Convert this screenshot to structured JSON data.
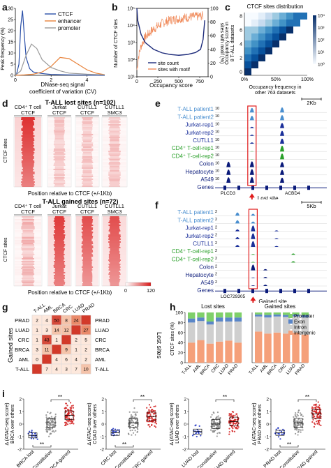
{
  "panels": {
    "a": {
      "letter": "a",
      "ylabel": "Peak frequency (%)",
      "xlabel": "DNase-seq signal coefficient of variation (CV)",
      "xlabel_line1": "DNase-seq signal",
      "xlabel_line2": "coefficient of variation (CV)",
      "yticks": [
        "0",
        "5",
        "10",
        "15",
        "20",
        "25",
        "30"
      ],
      "xticks": [
        "0",
        "2",
        "4"
      ],
      "legend": [
        {
          "name": "CTCF",
          "color": "#2a4fa8"
        },
        {
          "name": "enhancer",
          "color": "#e8823a"
        },
        {
          "name": "promoter",
          "color": "#9a9a9a"
        }
      ]
    },
    "b": {
      "letter": "b",
      "ylabel_left": "Number of CTCF sites",
      "ylabel_right": "sites with motif (%)",
      "xlabel": "Occupancy score",
      "xticks": [
        "0",
        "250",
        "500",
        "750"
      ],
      "yticks_left": [
        "10^1",
        "10^2",
        "10^3",
        "10^4",
        "10^5"
      ],
      "yticks_right": [
        "0",
        "20",
        "40",
        "60",
        "80",
        "100"
      ],
      "legend": [
        {
          "name": "site count",
          "color": "#1c2a7a"
        },
        {
          "name": "sites with motif",
          "color": "#f08a5a"
        }
      ]
    },
    "c": {
      "letter": "c",
      "title": "CTCF sites distribution",
      "ylabel_line1": "Occupancy score in",
      "ylabel_line2": "8 T-ALL datasets",
      "xlabel_line1": "Occupancy frequency in",
      "xlabel_line2": "other 763 datasets",
      "yticks": [
        "0",
        "2",
        "4",
        "6",
        "8"
      ],
      "xticks": [
        "0%",
        "50%",
        "100%"
      ],
      "colorbar_ticks": [
        "10^0",
        "10^1",
        "10^2",
        "10^3",
        "10^4"
      ]
    },
    "d": {
      "letter": "d",
      "top_title": "T-ALL lost sites (n=102)",
      "bottom_title": "T-ALL gained sites (n=72)",
      "columns": [
        {
          "line1": "CD4⁺ T cell",
          "line2": "CTCF"
        },
        {
          "line1": "Jurkat",
          "line2": "CTCF"
        },
        {
          "line1": "CUTLL1",
          "line2": "CTCF"
        },
        {
          "line1": "CUTLL1",
          "line2": "SMC3"
        }
      ],
      "side_label": "CTCF sites",
      "xlabel": "Position relative to CTCF (+/-1Kb)",
      "colorbar": [
        "0",
        "120"
      ]
    },
    "e": {
      "letter": "e",
      "scale": "2Kb",
      "tracks": [
        {
          "name": "T-ALL patient1",
          "color": "#4a8fd0",
          "max": "10"
        },
        {
          "name": "T-ALL patient2",
          "color": "#4a8fd0",
          "max": "10"
        },
        {
          "name": "Jurkat-rep1",
          "color": "#1a2f9a",
          "max": "10"
        },
        {
          "name": "Jurkat-rep2",
          "color": "#1a2f9a",
          "max": "10"
        },
        {
          "name": "CUTLL1",
          "color": "#1a2f9a",
          "max": "10"
        },
        {
          "name": "CD4⁺ T-cell-rep1",
          "color": "#2aa02a",
          "max": "10"
        },
        {
          "name": "CD4⁺ T-cell-rep2",
          "color": "#2aa02a",
          "max": "10"
        },
        {
          "name": "Colon",
          "color": "#0a1a7a",
          "max": "10"
        },
        {
          "name": "Hepatocyte",
          "color": "#0a1a7a",
          "max": "10"
        },
        {
          "name": "A549",
          "color": "#0a1a7a",
          "max": "10"
        },
        {
          "name": "Genes",
          "color": "#0a1a7a",
          "max": ""
        }
      ],
      "genes": [
        "PLCD3",
        "ACBD4"
      ],
      "arrow_label": "Lost site"
    },
    "f": {
      "letter": "f",
      "scale": "5Kb",
      "tracks": [
        {
          "name": "T-ALL patient1",
          "color": "#4a8fd0",
          "max": "2"
        },
        {
          "name": "T-ALL patient2",
          "color": "#4a8fd0",
          "max": "2"
        },
        {
          "name": "Jurkat-rep1",
          "color": "#1a2f9a",
          "max": "2"
        },
        {
          "name": "Jurkat-rep2",
          "color": "#1a2f9a",
          "max": "2"
        },
        {
          "name": "CUTLL1",
          "color": "#1a2f9a",
          "max": "2"
        },
        {
          "name": "CD4⁺ T-cell-rep1",
          "color": "#2aa02a",
          "max": "2"
        },
        {
          "name": "CD4⁺ T-cell-rep2",
          "color": "#2aa02a",
          "max": "2"
        },
        {
          "name": "Colon",
          "color": "#0a1a7a",
          "max": "2"
        },
        {
          "name": "Hepatocyte",
          "color": "#0a1a7a",
          "max": "2"
        },
        {
          "name": "A549",
          "color": "#0a1a7a",
          "max": "2"
        },
        {
          "name": "Genes",
          "color": "#0a1a7a",
          "max": ""
        }
      ],
      "genes": [
        "LOC729305"
      ],
      "arrow_label": "Gained site"
    },
    "g": {
      "letter": "g",
      "left_label": "Gained sites",
      "right_label": "Lost sites",
      "cancers": [
        "T-ALL",
        "AML",
        "BRCA",
        "CRC",
        "LUAD",
        "PRAD"
      ],
      "row_labels": [
        "PRAD",
        "LUAD",
        "CRC",
        "BRCA",
        "AML",
        "T-ALL"
      ],
      "cells": [
        {
          "r": 0,
          "c": 0,
          "v": "2"
        },
        {
          "r": 0,
          "c": 1,
          "v": "4"
        },
        {
          "r": 0,
          "c": 2,
          "v": "50"
        },
        {
          "r": 0,
          "c": 3,
          "v": "8"
        },
        {
          "r": 0,
          "c": 4,
          "v": "24"
        },
        {
          "r": 1,
          "c": 0,
          "v": "1"
        },
        {
          "r": 1,
          "c": 1,
          "v": "3"
        },
        {
          "r": 1,
          "c": 2,
          "v": "14"
        },
        {
          "r": 1,
          "c": 3,
          "v": "12"
        },
        {
          "r": 1,
          "c": 5,
          "v": "27"
        },
        {
          "r": 2,
          "c": 0,
          "v": "1"
        },
        {
          "r": 2,
          "c": 1,
          "v": "43"
        },
        {
          "r": 2,
          "c": 2,
          "v": "1"
        },
        {
          "r": 2,
          "c": 4,
          "v": "2"
        },
        {
          "r": 2,
          "c": 5,
          "v": "5"
        },
        {
          "r": 3,
          "c": 0,
          "v": "3"
        },
        {
          "r": 3,
          "c": 1,
          "v": "11"
        },
        {
          "r": 3,
          "c": 3,
          "v": "9"
        },
        {
          "r": 3,
          "c": 4,
          "v": "1"
        },
        {
          "r": 3,
          "c": 5,
          "v": "2"
        },
        {
          "r": 4,
          "c": 0,
          "v": "0"
        },
        {
          "r": 4,
          "c": 2,
          "v": "4"
        },
        {
          "r": 4,
          "c": 3,
          "v": "6"
        },
        {
          "r": 4,
          "c": 4,
          "v": "4"
        },
        {
          "r": 4,
          "c": 5,
          "v": "2"
        },
        {
          "r": 5,
          "c": 1,
          "v": "7"
        },
        {
          "r": 5,
          "c": 2,
          "v": "4"
        },
        {
          "r": 5,
          "c": 3,
          "v": "3"
        },
        {
          "r": 5,
          "c": 4,
          "v": "7"
        },
        {
          "r": 5,
          "c": 5,
          "v": "10"
        }
      ]
    },
    "i": {
      "letter": "i",
      "plots": [
        {
          "ylabel_line1": "Δ (ATAC-seq score)",
          "ylabel_line2": "BRCA over others",
          "groups": [
            "BRCA lost",
            "Constitutive",
            "BRCA gained"
          ],
          "yticks": [
            "-2",
            "-1",
            "0",
            "1",
            "2"
          ],
          "sig": [
            "**",
            "**"
          ]
        },
        {
          "ylabel_line1": "Δ (ATAC-seq score)",
          "ylabel_line2": "COAD over others",
          "groups": [
            "CRC lost",
            "Constitutive",
            "CRC gained"
          ],
          "yticks": [
            "-2",
            "-1",
            "0",
            "1",
            "2"
          ],
          "sig": [
            "**",
            "**"
          ]
        },
        {
          "ylabel_line1": "Δ (ATAC-seq score)",
          "ylabel_line2": "LUAD over others",
          "groups": [
            "LUAD lost",
            "Constitutive",
            "LUAD gained"
          ],
          "yticks": [
            "-2",
            "-1",
            "0",
            "1",
            "2"
          ],
          "sig": [
            "**"
          ]
        },
        {
          "ylabel_line1": "Δ (ATAC-seq score)",
          "ylabel_line2": "PRAD over others",
          "groups": [
            "PRAD lost",
            "Constitutive",
            "PRAD gained"
          ],
          "yticks": [
            "-2",
            "-1",
            "0",
            "1",
            "2"
          ],
          "sig": [
            "**",
            "**"
          ]
        }
      ],
      "group_colors": [
        "#1a2fbf",
        "#8a8a8a",
        "#d01a1a"
      ]
    }
  },
  "chart_data": [
    {
      "type": "line",
      "ylabel": "Peak frequency (%)",
      "xlabel": "DNase-seq signal coefficient of variation (CV)",
      "ylim": [
        0,
        30
      ],
      "xlim": [
        0,
        5
      ],
      "series": [
        {
          "name": "CTCF",
          "x": [
            0.05,
            0.2,
            0.3,
            0.4,
            0.5,
            0.6,
            0.8,
            1.0,
            1.5,
            2,
            3,
            4,
            5
          ],
          "values": [
            0,
            5,
            22,
            29,
            18,
            8,
            3,
            1.5,
            0.8,
            0.4,
            0.2,
            0.1,
            0
          ]
        },
        {
          "name": "enhancer",
          "x": [
            0,
            0.5,
            1,
            1.5,
            2,
            2.5,
            3,
            3.5,
            4,
            4.5,
            5
          ],
          "values": [
            0,
            0.2,
            0.5,
            1.5,
            4,
            8,
            7.5,
            5,
            2.5,
            1,
            0.3
          ]
        },
        {
          "name": "promoter",
          "x": [
            0,
            0.3,
            0.6,
            0.9,
            1.2,
            1.5,
            2,
            2.5,
            3,
            4,
            5
          ],
          "values": [
            0,
            2,
            9,
            14,
            12,
            7,
            3.5,
            2,
            1,
            0.5,
            0.2
          ]
        }
      ]
    },
    {
      "type": "line",
      "xlabel": "Occupancy score",
      "ylabel": "Number of CTCF sites",
      "xlim": [
        0,
        850
      ],
      "series": [
        {
          "name": "site count",
          "x": [
            0,
            10,
            50,
            100,
            200,
            300,
            400,
            500,
            600,
            700,
            760,
            790,
            810
          ],
          "values": [
            100000,
            20000,
            3000,
            1000,
            400,
            250,
            200,
            180,
            200,
            260,
            400,
            1500,
            20000
          ]
        },
        {
          "name": "sites with motif",
          "x": [
            0,
            20,
            50,
            100,
            200,
            300,
            400,
            500,
            600,
            700,
            790
          ],
          "values": [
            10,
            30,
            45,
            58,
            70,
            78,
            83,
            85,
            87,
            88,
            89
          ]
        }
      ]
    },
    {
      "type": "bar",
      "title": "Lost sites",
      "ylabel": "CTCF sites (%)",
      "categories": [
        "T-ALL",
        "AML",
        "BRCA",
        "CRC",
        "LUAD",
        "PRAD"
      ],
      "ylim": [
        0,
        100
      ],
      "series": [
        {
          "name": "Intergenic",
          "values": [
            40,
            45,
            38,
            42,
            44,
            40
          ]
        },
        {
          "name": "Intron",
          "values": [
            40,
            38,
            38,
            40,
            38,
            42
          ]
        },
        {
          "name": "Exon",
          "values": [
            8,
            7,
            6,
            8,
            8,
            8
          ]
        },
        {
          "name": "Promoter",
          "values": [
            12,
            10,
            18,
            10,
            10,
            10
          ]
        }
      ]
    },
    {
      "type": "bar",
      "title": "Gained sites",
      "categories": [
        "T-ALL",
        "AML",
        "BRCA",
        "CRC",
        "LUAD",
        "PRAD"
      ],
      "ylim": [
        0,
        100
      ],
      "series": [
        {
          "name": "Intergenic",
          "values": [
            62,
            58,
            60,
            58,
            60,
            56
          ]
        },
        {
          "name": "Intron",
          "values": [
            30,
            32,
            32,
            33,
            32,
            34
          ]
        },
        {
          "name": "Exon",
          "values": [
            4,
            5,
            4,
            4,
            4,
            5
          ]
        },
        {
          "name": "Promoter",
          "values": [
            4,
            5,
            4,
            5,
            4,
            5
          ]
        }
      ]
    }
  ]
}
